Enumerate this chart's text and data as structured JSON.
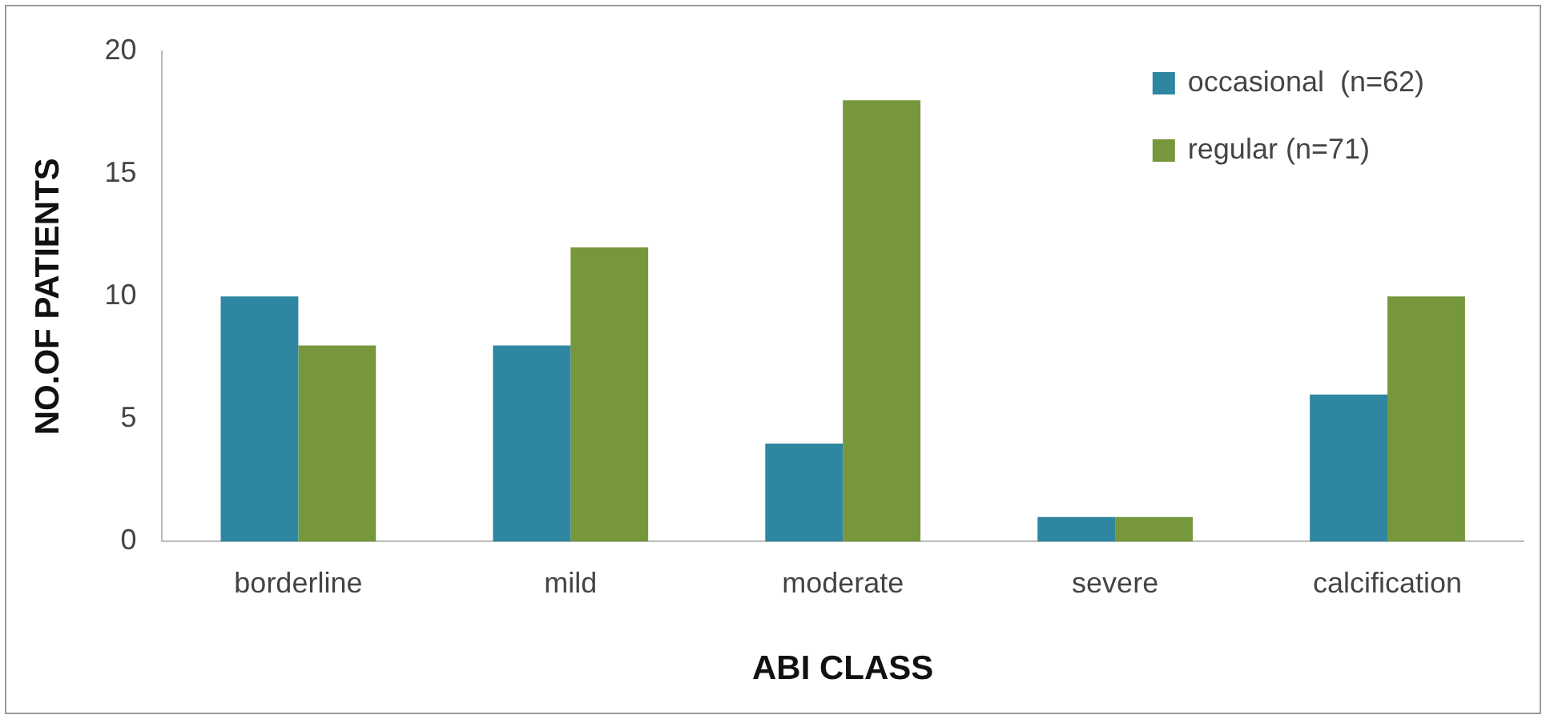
{
  "chart_data": {
    "type": "bar",
    "xlabel": "ABI CLASS",
    "ylabel": "NO.OF PATIENTS",
    "categories": [
      "borderline",
      "mild",
      "moderate",
      "severe",
      "calcification"
    ],
    "series": [
      {
        "name": "occasional  (n=62)",
        "color": "#2e86a0",
        "values": [
          10,
          8,
          4,
          1,
          6
        ]
      },
      {
        "name": "regular (n=71)",
        "color": "#76973b",
        "values": [
          8,
          12,
          18,
          1,
          10
        ]
      }
    ],
    "ylim": [
      0,
      20
    ],
    "yticks": [
      0,
      5,
      10,
      15,
      20
    ],
    "grid": false,
    "legend": "top right"
  }
}
